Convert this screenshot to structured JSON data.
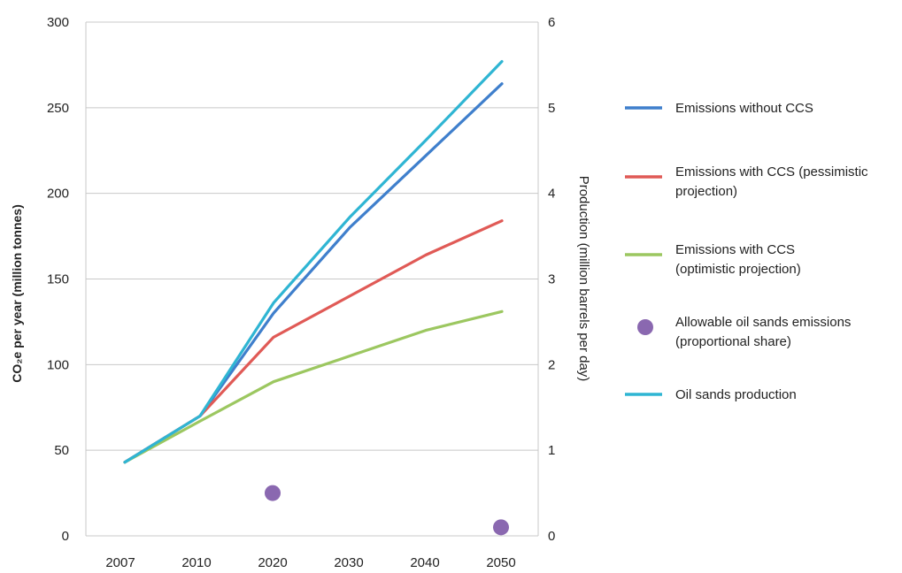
{
  "chart_data": {
    "type": "line",
    "x_categories": [
      "2007",
      "2010",
      "2020",
      "2030",
      "2040",
      "2050"
    ],
    "ylabel_left": "CO₂e per year (million tonnes)",
    "ylabel_right": "Production (million barrels per day)",
    "ylim_left": [
      0,
      300
    ],
    "ylim_right": [
      0,
      6
    ],
    "yticks_left": [
      "0",
      "50",
      "100",
      "150",
      "200",
      "250",
      "300"
    ],
    "yticks_right": [
      "0",
      "1",
      "2",
      "3",
      "4",
      "5",
      "6"
    ],
    "grid": "horizontal",
    "legend_position": "right",
    "series": [
      {
        "name": "Emissions without CCS",
        "color": "#3f7fcc",
        "marker": "line",
        "axis": "left",
        "x": [
          "2007",
          "2010",
          "2020",
          "2030",
          "2040",
          "2050"
        ],
        "values": [
          43,
          70,
          130,
          180,
          222,
          264
        ]
      },
      {
        "name": "Emissions with CCS (pessimistic projection)",
        "color": "#e05a56",
        "marker": "line",
        "axis": "left",
        "x": [
          "2007",
          "2010",
          "2020",
          "2030",
          "2040",
          "2050"
        ],
        "values": [
          43,
          70,
          116,
          140,
          164,
          184
        ]
      },
      {
        "name": "Emissions with CCS (optimistic projection)",
        "color": "#9cc760",
        "marker": "line",
        "axis": "left",
        "x": [
          "2007",
          "2010",
          "2020",
          "2030",
          "2040",
          "2050"
        ],
        "values": [
          43,
          67,
          90,
          105,
          120,
          131
        ]
      },
      {
        "name": "Allowable oil sands emissions (proportional share)",
        "color": "#8a68b0",
        "marker": "dot",
        "axis": "left",
        "x": [
          "2020",
          "2050"
        ],
        "values": [
          25,
          5
        ]
      },
      {
        "name": "Oil sands production",
        "color": "#2fb5d3",
        "marker": "line",
        "axis": "right",
        "x": [
          "2007",
          "2010",
          "2020",
          "2030",
          "2040",
          "2050"
        ],
        "values": [
          0.86,
          1.4,
          2.72,
          3.72,
          4.62,
          5.54
        ]
      }
    ]
  }
}
